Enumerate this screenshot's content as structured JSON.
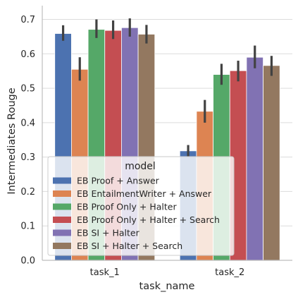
{
  "chart_data": {
    "type": "bar",
    "xlabel": "task_name",
    "ylabel": "Intermediates Rouge",
    "categories": [
      "task_1",
      "task_2"
    ],
    "ylim": [
      0,
      0.74
    ],
    "yticks": [
      "0.0",
      "0.1",
      "0.2",
      "0.3",
      "0.4",
      "0.5",
      "0.6",
      "0.7"
    ],
    "grid": "horizontal",
    "legend_title": "model",
    "legend_position": "lower-left",
    "series": [
      {
        "name": "EB Proof + Answer",
        "color": "#4c72b0",
        "values": [
          0.659,
          0.318
        ],
        "ci": [
          [
            0.638,
            0.683
          ],
          [
            0.302,
            0.335
          ]
        ]
      },
      {
        "name": "EB EntailmentWriter + Answer",
        "color": "#dd8452",
        "values": [
          0.555,
          0.433
        ],
        "ci": [
          [
            0.522,
            0.59
          ],
          [
            0.4,
            0.466
          ]
        ]
      },
      {
        "name": "EB Proof Only + Halter",
        "color": "#55a868",
        "values": [
          0.671,
          0.54
        ],
        "ci": [
          [
            0.646,
            0.7
          ],
          [
            0.51,
            0.571
          ]
        ]
      },
      {
        "name": "EB Proof Only + Halter + Search",
        "color": "#c44e52",
        "values": [
          0.668,
          0.551
        ],
        "ci": [
          [
            0.643,
            0.697
          ],
          [
            0.52,
            0.58
          ]
        ]
      },
      {
        "name": "EB SI + Halter",
        "color": "#8172b3",
        "values": [
          0.676,
          0.59
        ],
        "ci": [
          [
            0.65,
            0.703
          ],
          [
            0.558,
            0.624
          ]
        ]
      },
      {
        "name": "EB SI + Halter + Search",
        "color": "#937860",
        "values": [
          0.657,
          0.566
        ],
        "ci": [
          [
            0.63,
            0.684
          ],
          [
            0.536,
            0.594
          ]
        ]
      }
    ]
  }
}
